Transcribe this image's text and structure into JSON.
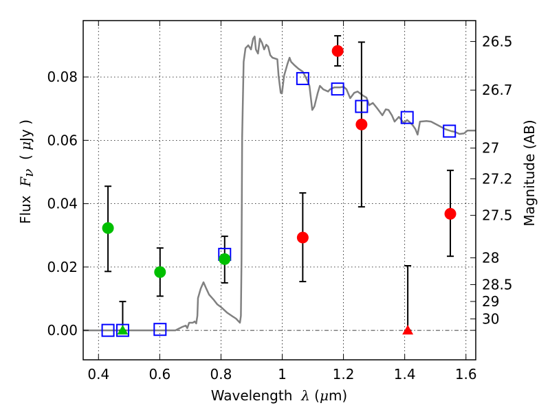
{
  "chart_data": {
    "type": "scatter",
    "title": "",
    "xlabel": "Wavelength  λ (μm)",
    "xlabel_parts": {
      "text": "Wavelength  ",
      "symbol": "λ",
      "unit_open": " (",
      "unit_mu": "μ",
      "unit_rest": "m)"
    },
    "ylabel": "Flux  Fν  ( μJy )",
    "ylabel_parts": {
      "text": "Flux  ",
      "symbol": "F",
      "subscript": "ν",
      "unit_open": "  ( ",
      "unit_mu": "μ",
      "unit_rest": "Jy )"
    },
    "y2label": "Magnitude (AB)",
    "xlim": [
      0.35,
      1.632
    ],
    "ylim": [
      -0.0093,
      0.0978
    ],
    "grid": true,
    "x_ticks": [
      {
        "value": 0.4,
        "label": "0.4"
      },
      {
        "value": 0.6,
        "label": "0.6"
      },
      {
        "value": 0.8,
        "label": "0.8"
      },
      {
        "value": 1.0,
        "label": "1"
      },
      {
        "value": 1.2,
        "label": "1.2"
      },
      {
        "value": 1.4,
        "label": "1.4"
      },
      {
        "value": 1.6,
        "label": "1.6"
      }
    ],
    "y_ticks": [
      {
        "value": 0.0,
        "label": "0.00"
      },
      {
        "value": 0.02,
        "label": "0.02"
      },
      {
        "value": 0.04,
        "label": "0.04"
      },
      {
        "value": 0.06,
        "label": "0.06"
      },
      {
        "value": 0.08,
        "label": "0.08"
      }
    ],
    "y2_ticks": [
      {
        "magnitude": 26.5,
        "label": "26.5"
      },
      {
        "magnitude": 26.7,
        "label": "26.7"
      },
      {
        "magnitude": 27.0,
        "label": "27"
      },
      {
        "magnitude": 27.2,
        "label": "27.2"
      },
      {
        "magnitude": 27.5,
        "label": "27.5"
      },
      {
        "magnitude": 28.0,
        "label": "28"
      },
      {
        "magnitude": 28.5,
        "label": "28.5"
      },
      {
        "magnitude": 29.0,
        "label": "29"
      },
      {
        "magnitude": 30.0,
        "label": "30"
      }
    ],
    "ab_zeropoint_ujy_mag": 23.9,
    "zero_line": {
      "value": 0.0,
      "style": "dash-dot"
    },
    "series": [
      {
        "name": "model-spectrum",
        "kind": "line",
        "color": "#808080",
        "x": [
          0.351,
          0.651,
          0.674,
          0.685,
          0.69,
          0.696,
          0.708,
          0.714,
          0.719,
          0.723,
          0.725,
          0.734,
          0.743,
          0.752,
          0.761,
          0.775,
          0.788,
          0.802,
          0.82,
          0.835,
          0.849,
          0.862,
          0.865,
          0.867,
          0.869,
          0.874,
          0.88,
          0.889,
          0.898,
          0.905,
          0.91,
          0.914,
          0.921,
          0.927,
          0.934,
          0.941,
          0.948,
          0.954,
          0.961,
          0.968,
          0.984,
          0.988,
          0.995,
          0.999,
          1.006,
          1.017,
          1.024,
          1.029,
          1.04,
          1.053,
          1.067,
          1.08,
          1.089,
          1.098,
          1.105,
          1.116,
          1.123,
          1.134,
          1.15,
          1.156,
          1.17,
          1.188,
          1.201,
          1.21,
          1.222,
          1.235,
          1.246,
          1.264,
          1.275,
          1.284,
          1.296,
          1.311,
          1.327,
          1.338,
          1.347,
          1.358,
          1.367,
          1.381,
          1.397,
          1.408,
          1.417,
          1.426,
          1.435,
          1.442,
          1.45,
          1.471,
          1.486,
          1.5,
          1.516,
          1.533,
          1.552,
          1.563,
          1.579,
          1.594,
          1.605,
          1.632
        ],
        "y": [
          0,
          0,
          0.0011,
          0.0015,
          0.0007,
          0.0024,
          0.0024,
          0.0028,
          0.0022,
          0.0046,
          0.0102,
          0.0132,
          0.0152,
          0.0132,
          0.0113,
          0.0098,
          0.0082,
          0.0072,
          0.0056,
          0.0046,
          0.0037,
          0.0024,
          0.0046,
          0.0219,
          0.0609,
          0.0848,
          0.0891,
          0.09,
          0.0887,
          0.0921,
          0.0928,
          0.0887,
          0.0874,
          0.0921,
          0.0908,
          0.0887,
          0.0902,
          0.0896,
          0.0869,
          0.0861,
          0.0856,
          0.0804,
          0.075,
          0.0748,
          0.0804,
          0.0841,
          0.0861,
          0.0848,
          0.0837,
          0.0826,
          0.0817,
          0.0793,
          0.0772,
          0.0696,
          0.0707,
          0.075,
          0.0772,
          0.0761,
          0.0754,
          0.0761,
          0.0767,
          0.0767,
          0.0769,
          0.0761,
          0.0733,
          0.075,
          0.0754,
          0.0741,
          0.0735,
          0.0711,
          0.0718,
          0.07,
          0.0679,
          0.0698,
          0.0696,
          0.0679,
          0.0659,
          0.0674,
          0.0655,
          0.0664,
          0.0657,
          0.0648,
          0.0635,
          0.0618,
          0.0659,
          0.0661,
          0.0659,
          0.0652,
          0.0644,
          0.0635,
          0.0629,
          0.0627,
          0.062,
          0.0622,
          0.0631,
          0.0631
        ]
      },
      {
        "name": "model-photometry",
        "kind": "open-square",
        "color": "#0000ff",
        "x": [
          0.431,
          0.479,
          0.601,
          0.812,
          1.067,
          1.181,
          1.259,
          1.408,
          1.546
        ],
        "y": [
          0.0,
          0.0,
          0.0003,
          0.024,
          0.0795,
          0.0762,
          0.0707,
          0.0672,
          0.0629
        ]
      },
      {
        "name": "optical-detections",
        "kind": "circle",
        "color": "#00bf00",
        "x": [
          0.431,
          0.601,
          0.812
        ],
        "y": [
          0.0323,
          0.0184,
          0.0225
        ],
        "err_low": [
          0.0186,
          0.0108,
          0.015
        ],
        "err_high": [
          0.0455,
          0.026,
          0.0297
        ]
      },
      {
        "name": "optical-upper-limit",
        "kind": "triangle",
        "color": "#00bf00",
        "x": [
          0.479
        ],
        "y": [
          0.0
        ],
        "err_low": [
          0.0
        ],
        "err_high": [
          0.0091
        ]
      },
      {
        "name": "nir-detections",
        "kind": "circle",
        "color": "#ff0000",
        "x": [
          1.067,
          1.181,
          1.259,
          1.549
        ],
        "y": [
          0.0293,
          0.0882,
          0.065,
          0.0368
        ],
        "err_low": [
          0.0154,
          0.0835,
          0.039,
          0.0234
        ],
        "err_high": [
          0.0434,
          0.093,
          0.091,
          0.0505
        ]
      },
      {
        "name": "nir-upper-limit",
        "kind": "triangle",
        "color": "#ff0000",
        "x": [
          1.41
        ],
        "y": [
          0.0
        ],
        "err_low": [
          0.0
        ],
        "err_high": [
          0.0204
        ]
      }
    ]
  }
}
